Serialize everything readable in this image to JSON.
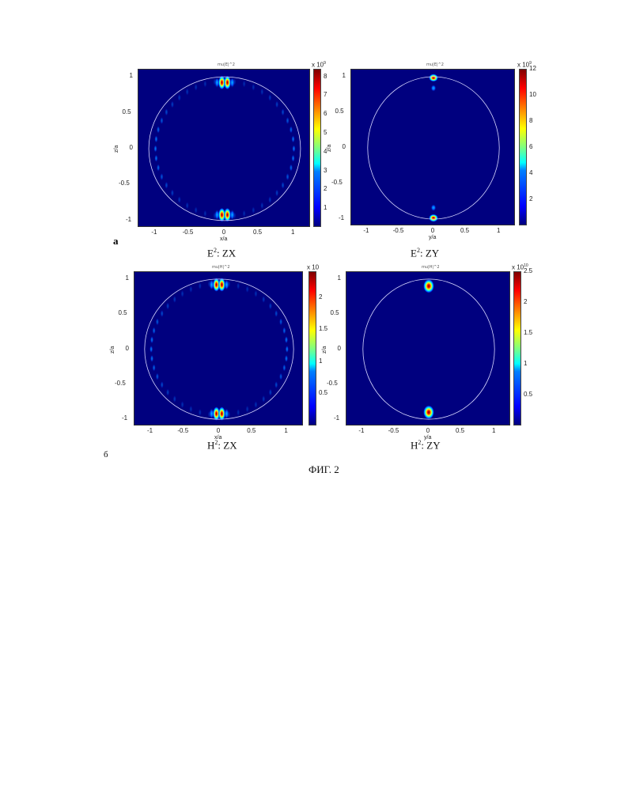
{
  "figure_label": "ФИГ. 2",
  "row_labels": [
    "a",
    "б"
  ],
  "chart_data": [
    {
      "type": "heatmap",
      "id": "E2-ZX",
      "caption_base": "E",
      "caption_sup": "2",
      "caption_rest": ": ZX",
      "mini_title": "mu|E|^2",
      "xlabel": "x/a",
      "ylabel": "z/a",
      "xlim": [
        -1.25,
        1.25
      ],
      "ylim": [
        -1.1,
        1.1
      ],
      "xticks": [
        "-1",
        "-0.5",
        "0",
        "0.5",
        "1"
      ],
      "xtick_values": [
        -1,
        -0.5,
        0,
        0.5,
        1
      ],
      "yticks": [
        "1",
        "0.5",
        "0",
        "-0.5",
        "-1"
      ],
      "ytick_values": [
        1,
        0.5,
        0,
        -0.5,
        -1
      ],
      "boundary": {
        "rx": 1.1,
        "rz": 1.0
      },
      "colorbar": {
        "exponent_base": "x 10",
        "exponent": "9",
        "ticks": [
          "8",
          "7",
          "6",
          "5",
          "4",
          "3",
          "2",
          "1"
        ],
        "tick_values": [
          8,
          7,
          6,
          5,
          4,
          3,
          2,
          1
        ],
        "max": 8.4
      },
      "mode": "ring"
    },
    {
      "type": "heatmap",
      "id": "E2-ZY",
      "caption_base": "E",
      "caption_sup": "2",
      "caption_rest": ": ZY",
      "mini_title": "mu|E|^2",
      "xlabel": "y/a",
      "ylabel": "z/a",
      "xlim": [
        -1.25,
        1.25
      ],
      "ylim": [
        -1.1,
        1.1
      ],
      "xticks": [
        "-1",
        "-0.5",
        "0",
        "0.5",
        "1"
      ],
      "xtick_values": [
        -1,
        -0.5,
        0,
        0.5,
        1
      ],
      "yticks": [
        "1",
        "0.5",
        "0",
        "-0.5",
        "-1"
      ],
      "ytick_values": [
        1,
        0.5,
        0,
        -0.5,
        -1
      ],
      "boundary": {
        "rx": 1.0,
        "rz": 1.0
      },
      "colorbar": {
        "exponent_base": "x 10",
        "exponent": "9",
        "ticks": [
          "12",
          "10",
          "8",
          "6",
          "4",
          "2"
        ],
        "tick_values": [
          12,
          10,
          8,
          6,
          4,
          2
        ],
        "max": 12
      },
      "mode": "poles"
    },
    {
      "type": "heatmap",
      "id": "H2-ZX",
      "caption_base": "H",
      "caption_sup": "2",
      "caption_rest": ": ZX",
      "mini_title": "mu|H|^2",
      "xlabel": "x/a",
      "ylabel": "z/a",
      "xlim": [
        -1.25,
        1.25
      ],
      "ylim": [
        -1.1,
        1.1
      ],
      "xticks": [
        "-1",
        "-0.5",
        "0",
        "0.5",
        "1"
      ],
      "xtick_values": [
        -1,
        -0.5,
        0,
        0.5,
        1
      ],
      "yticks": [
        "1",
        "0.5",
        "0",
        "-0.5",
        "-1"
      ],
      "ytick_values": [
        1,
        0.5,
        0,
        -0.5,
        -1
      ],
      "boundary": {
        "rx": 1.1,
        "rz": 1.0
      },
      "colorbar": {
        "exponent_base": "x 10",
        "exponent": "",
        "ticks": [
          "2",
          "1.5",
          "1",
          "0.5"
        ],
        "tick_values": [
          2,
          1.5,
          1,
          0.5
        ],
        "max": 2.4
      },
      "mode": "ring"
    },
    {
      "type": "heatmap",
      "id": "H2-ZY",
      "caption_base": "H",
      "caption_sup": "2",
      "caption_rest": ": ZY",
      "mini_title": "mu|H|^2",
      "xlabel": "y/a",
      "ylabel": "z/a",
      "xlim": [
        -1.25,
        1.25
      ],
      "ylim": [
        -1.1,
        1.1
      ],
      "xticks": [
        "-1",
        "-0.5",
        "0",
        "0.5",
        "1"
      ],
      "xtick_values": [
        -1,
        -0.5,
        0,
        0.5,
        1
      ],
      "yticks": [
        "1",
        "0.5",
        "0",
        "-0.5",
        "-1"
      ],
      "ytick_values": [
        1,
        0.5,
        0,
        -0.5,
        -1
      ],
      "boundary": {
        "rx": 1.0,
        "rz": 1.0
      },
      "colorbar": {
        "exponent_base": "x 10",
        "exponent": "10",
        "ticks": [
          "2.5",
          "2",
          "1.5",
          "1",
          "0.5"
        ],
        "tick_values": [
          2.5,
          2,
          1.5,
          1,
          0.5
        ],
        "max": 2.5
      },
      "mode": "poles2"
    }
  ]
}
